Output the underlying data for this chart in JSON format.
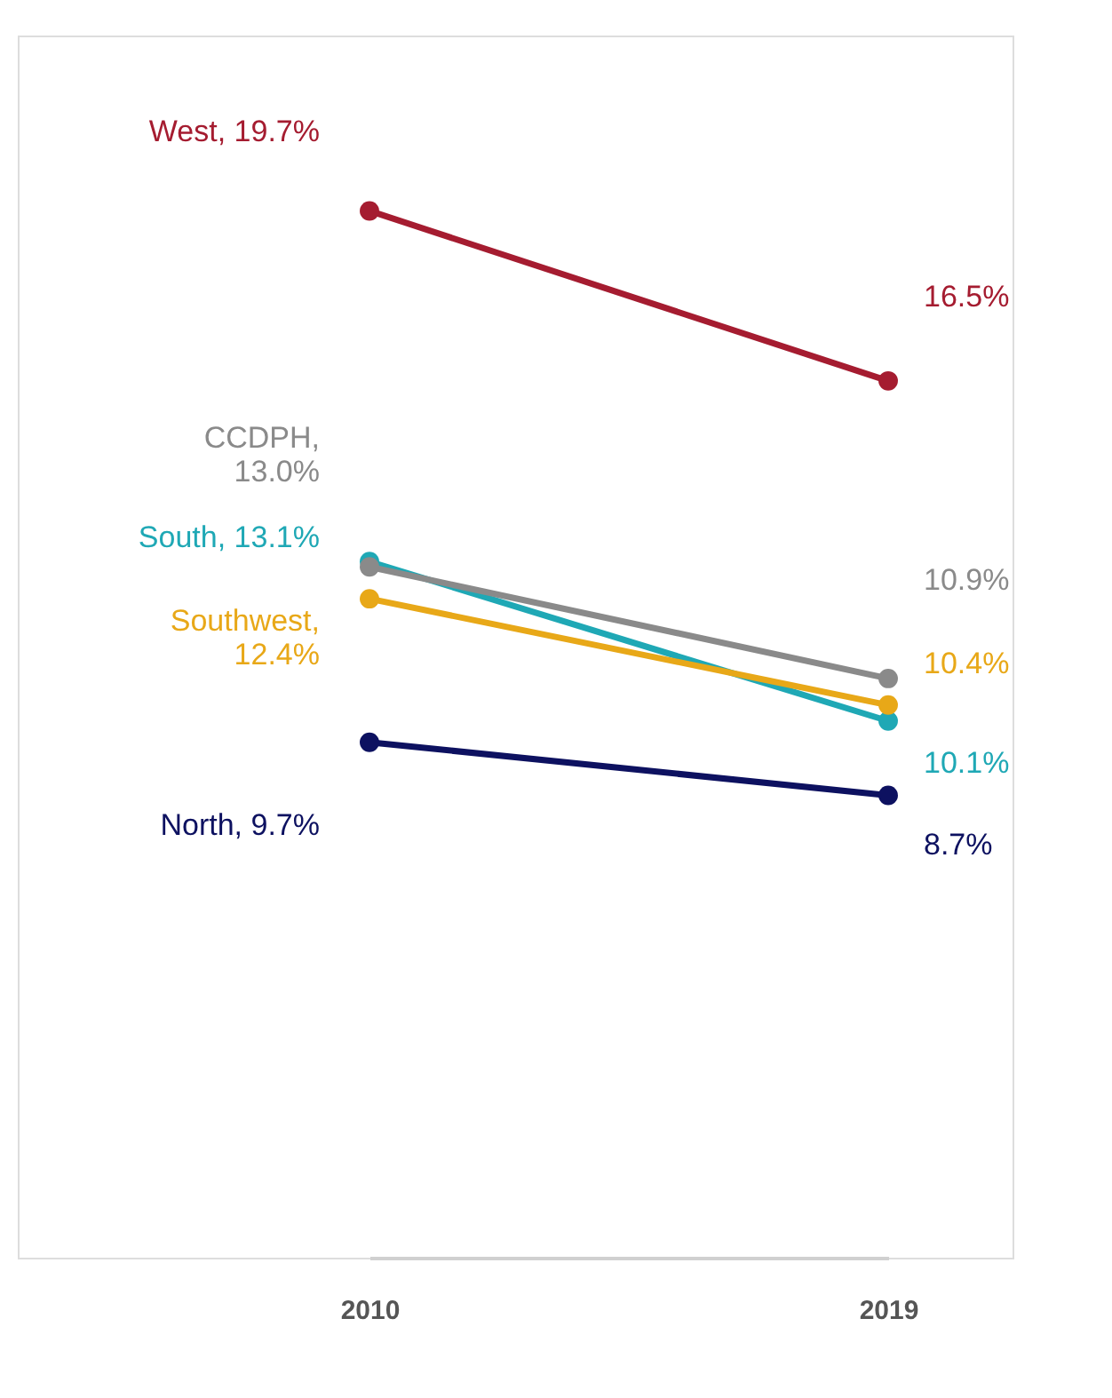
{
  "chart_data": {
    "type": "line",
    "categories": [
      "2010",
      "2019"
    ],
    "ylim": [
      0,
      23
    ],
    "tick_labels": "x",
    "marker": "circle",
    "line_style": "solid",
    "series": [
      {
        "color": "#a51c30",
        "values": [
          19.7,
          16.5
        ],
        "value_labels": [
          "West, 19.7%",
          "16.5%"
        ]
      },
      {
        "color": "#1fa8b5",
        "values": [
          13.1,
          10.1
        ],
        "value_labels": [
          "South, 13.1%",
          "10.1%"
        ]
      },
      {
        "color": "#e8a818",
        "values": [
          12.4,
          10.4
        ],
        "value_labels": [
          "Southwest, 12.4%",
          "10.4%"
        ]
      },
      {
        "color": "#8a8a8a",
        "values": [
          13.0,
          10.9
        ],
        "value_labels": [
          "CCDPH, 13.0%",
          "10.9%"
        ]
      },
      {
        "color": "#0d1160",
        "values": [
          9.7,
          8.7
        ],
        "value_labels": [
          "North, 9.7%",
          "8.7%"
        ]
      }
    ]
  }
}
